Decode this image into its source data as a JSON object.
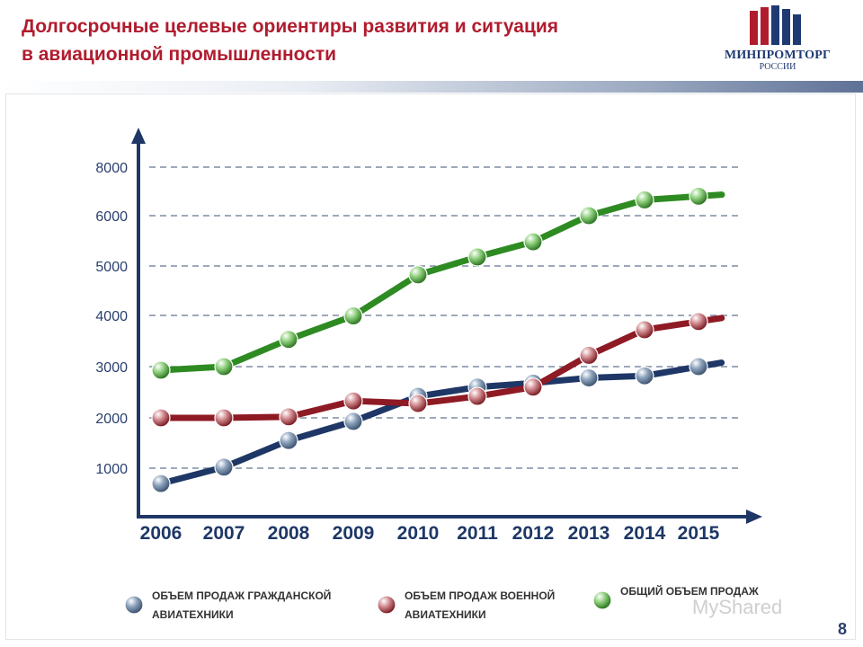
{
  "header": {
    "title_line1": "Долгосрочные целевые ориентиры развития и ситуация",
    "title_line2": "в авиационной промышленности"
  },
  "logo": {
    "name": "МИНПРОМТОРГ",
    "sub": "РОССИИ",
    "colors": [
      "#b01c2e",
      "#1f3a73"
    ]
  },
  "chart_data": {
    "type": "line",
    "title": "",
    "xlabel": "",
    "ylabel": "",
    "x": [
      "2006",
      "2007",
      "2008",
      "2009",
      "2010",
      "2011",
      "2012",
      "2013",
      "2014",
      "2015"
    ],
    "y_ticks": [
      "1000",
      "2000",
      "3000",
      "4000",
      "5000",
      "6000",
      "8000"
    ],
    "grid": true,
    "legend_position": "bottom",
    "series": [
      {
        "name": "ОБЪЕМ ПРОДАЖ ГРАЖДАНСКОЙ АВИАТЕХНИКИ",
        "legend_line1": "ОБЪЕМ ПРОДАЖ ГРАЖДАНСКОЙ",
        "legend_line2": "АВИАТЕХНИКИ",
        "color": "#1e3766",
        "marker_color": "#8da3bd",
        "values": [
          700,
          1020,
          1550,
          1930,
          2420,
          2600,
          2680,
          2780,
          2820,
          3000
        ]
      },
      {
        "name": "ОБЪЕМ ПРОДАЖ ВОЕННОЙ АВИАТЕХНИКИ",
        "legend_line1": "ОБЪЕМ ПРОДАЖ ВОЕННОЙ",
        "legend_line2": "АВИАТЕХНИКИ",
        "color": "#8e1a24",
        "marker_color": "#d18b8f",
        "values": [
          2000,
          2000,
          2020,
          2330,
          2280,
          2420,
          2600,
          3220,
          3720,
          3880
        ]
      },
      {
        "name": "ОБЩИЙ ОБЪЕМ ПРОДАЖ",
        "legend_line1": "ОБЩИЙ ОБЪЕМ ПРОДАЖ",
        "legend_line2": "",
        "color": "#2e8b22",
        "marker_color": "#8fd07d",
        "values": [
          2930,
          3000,
          3530,
          3990,
          4820,
          5180,
          5480,
          6000,
          6650,
          6800
        ]
      }
    ]
  },
  "watermark": "MyShared",
  "page_number": "8"
}
